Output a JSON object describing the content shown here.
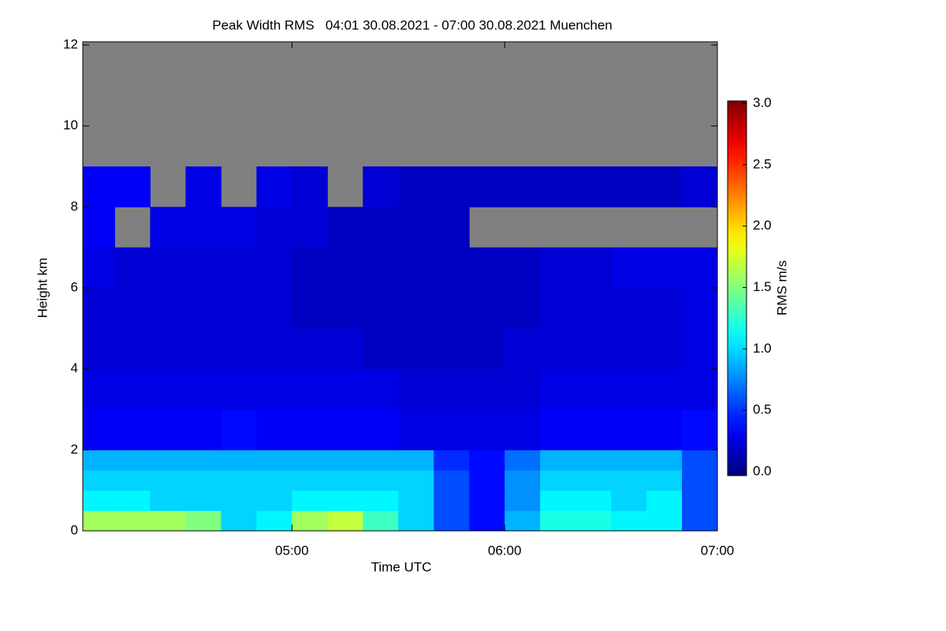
{
  "chart_data": {
    "type": "heatmap",
    "title": "Peak Width RMS   04:01 30.08.2021 - 07:00 30.08.2021 Muenchen",
    "xlabel": "Time UTC",
    "ylabel": "Height km",
    "colorbar_label": "RMS m/s",
    "colormap": "jet",
    "missing_color": "#808080",
    "xlim": [
      4.0167,
      7.0
    ],
    "xticks": [
      {
        "value": 5,
        "label": "05:00"
      },
      {
        "value": 6,
        "label": "06:00"
      },
      {
        "value": 7,
        "label": "07:00"
      }
    ],
    "ylim": [
      0,
      12
    ],
    "yticks": [
      0,
      2,
      4,
      6,
      8,
      10,
      12
    ],
    "clim": [
      0,
      3
    ],
    "cticks": [
      {
        "value": 0,
        "label": "0.0"
      },
      0.5,
      {
        "value": 1,
        "label": "1.0"
      },
      1.5,
      {
        "value": 2,
        "label": "2.0"
      },
      2.5,
      {
        "value": 3,
        "label": "3.0"
      }
    ],
    "xbins": [
      4.0167,
      4.1667,
      4.3333,
      4.5,
      4.6667,
      4.8333,
      5,
      5.1667,
      5.3333,
      5.5,
      5.6667,
      5.8333,
      6,
      6.1667,
      6.3333,
      6.5,
      6.6667,
      6.8333,
      7
    ],
    "ybins": [
      0,
      0.5,
      1,
      1.5,
      2,
      3,
      4,
      5,
      6,
      7,
      8,
      9,
      12
    ],
    "z": [
      [
        1.6,
        1.6,
        1.6,
        1.5,
        1.0,
        1.1,
        1.6,
        1.7,
        1.3,
        1.0,
        0.6,
        0.4,
        0.9,
        1.2,
        1.2,
        1.1,
        1.1,
        0.6
      ],
      [
        1.1,
        1.1,
        1.0,
        1.0,
        1.0,
        1.0,
        1.1,
        1.1,
        1.1,
        1.0,
        0.6,
        0.4,
        0.8,
        1.1,
        1.1,
        1.0,
        1.1,
        0.6
      ],
      [
        1.0,
        1.0,
        1.0,
        1.0,
        1.0,
        1.0,
        1.0,
        1.0,
        1.0,
        1.0,
        0.6,
        0.4,
        0.8,
        1.0,
        1.0,
        1.0,
        1.0,
        0.6
      ],
      [
        0.9,
        0.9,
        0.9,
        0.9,
        0.9,
        0.9,
        0.9,
        0.9,
        0.9,
        0.9,
        0.5,
        0.4,
        0.7,
        0.9,
        0.9,
        0.9,
        0.9,
        0.6
      ],
      [
        0.35,
        0.35,
        0.35,
        0.35,
        0.4,
        0.35,
        0.35,
        0.35,
        0.35,
        0.3,
        0.3,
        0.3,
        0.3,
        0.35,
        0.35,
        0.35,
        0.35,
        0.4
      ],
      [
        0.3,
        0.3,
        0.3,
        0.3,
        0.3,
        0.3,
        0.3,
        0.3,
        0.3,
        0.25,
        0.25,
        0.25,
        0.25,
        0.3,
        0.3,
        0.3,
        0.3,
        0.3
      ],
      [
        0.25,
        0.25,
        0.25,
        0.25,
        0.25,
        0.25,
        0.25,
        0.25,
        0.2,
        0.2,
        0.2,
        0.2,
        0.25,
        0.25,
        0.25,
        0.25,
        0.25,
        0.3
      ],
      [
        0.25,
        0.25,
        0.25,
        0.25,
        0.25,
        0.25,
        0.2,
        0.2,
        0.2,
        0.2,
        0.2,
        0.2,
        0.2,
        0.25,
        0.25,
        0.25,
        0.25,
        0.3
      ],
      [
        0.3,
        0.25,
        0.25,
        0.25,
        0.25,
        0.25,
        0.2,
        0.2,
        0.2,
        0.2,
        0.2,
        0.2,
        0.2,
        0.25,
        0.25,
        0.3,
        0.3,
        0.3
      ],
      [
        0.35,
        null,
        0.3,
        0.3,
        0.3,
        0.25,
        0.25,
        0.2,
        0.2,
        0.2,
        0.2,
        null,
        null,
        null,
        null,
        null,
        null,
        null
      ],
      [
        0.35,
        0.35,
        null,
        0.3,
        null,
        0.3,
        0.25,
        null,
        0.25,
        0.2,
        0.2,
        0.2,
        0.2,
        0.2,
        0.2,
        0.2,
        0.2,
        0.25
      ],
      [
        null,
        null,
        null,
        null,
        null,
        null,
        null,
        null,
        null,
        null,
        null,
        null,
        null,
        null,
        null,
        null,
        null,
        null
      ]
    ]
  }
}
